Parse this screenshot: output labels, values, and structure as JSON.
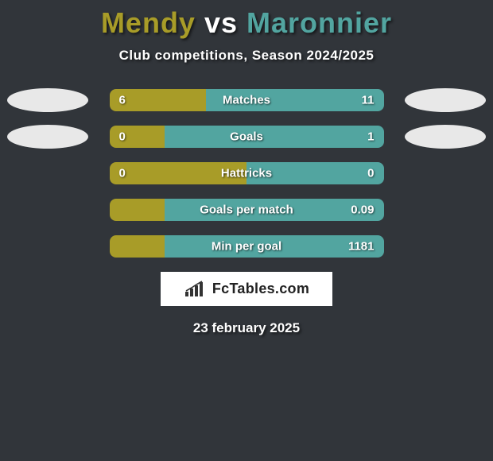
{
  "background_color": "#31353a",
  "title": {
    "player1": "Mendy",
    "vs": "vs",
    "player2": "Maronnier",
    "player1_color": "#a89c28",
    "vs_color": "#ffffff",
    "player2_color": "#52a5a0",
    "fontsize": 36
  },
  "subtitle": "Club competitions, Season 2024/2025",
  "colors": {
    "p1": "#a89c28",
    "p2": "#52a5a0",
    "ellipse_p1": "#e8e8e8",
    "ellipse_p2": "#e8e8e8",
    "bar_border": "none"
  },
  "stats": [
    {
      "label": "Matches",
      "v1": "6",
      "v2": "11",
      "left_pct": 35.3,
      "show_ellipse": true
    },
    {
      "label": "Goals",
      "v1": "0",
      "v2": "1",
      "left_pct": 20,
      "show_ellipse": true
    },
    {
      "label": "Hattricks",
      "v1": "0",
      "v2": "0",
      "left_pct": 50,
      "show_ellipse": false
    },
    {
      "label": "Goals per match",
      "v1": "",
      "v2": "0.09",
      "left_pct": 20,
      "show_ellipse": false
    },
    {
      "label": "Min per goal",
      "v1": "",
      "v2": "1181",
      "left_pct": 20,
      "show_ellipse": false
    }
  ],
  "logo_text": "FcTables.com",
  "date": "23 february 2025"
}
